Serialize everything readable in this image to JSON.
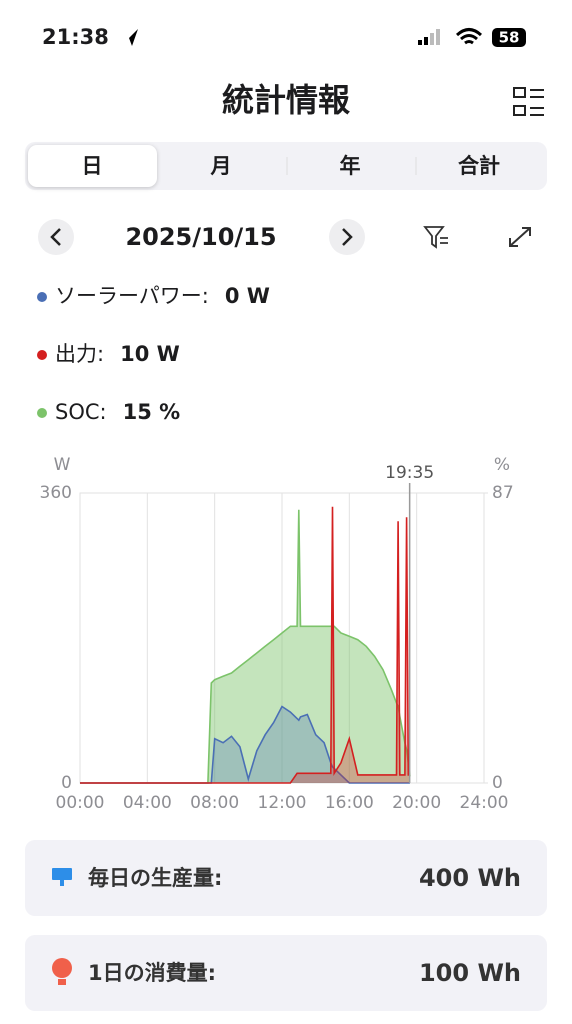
{
  "status_bar": {
    "time": "21:38",
    "battery": "58"
  },
  "header": {
    "title": "統計情報"
  },
  "tabs": [
    "日",
    "月",
    "年",
    "合計"
  ],
  "date": "2025/10/15",
  "readouts": [
    {
      "label": "ソーラーパワー:",
      "value": "0 W"
    },
    {
      "label": "出力:",
      "value": "10 W"
    },
    {
      "label": "SOC:",
      "value": "15 %"
    }
  ],
  "chart_data": {
    "type": "area",
    "ylabel": "W",
    "y2label": "%",
    "x": [
      0,
      6,
      7,
      7.6,
      7.8,
      8,
      8.5,
      9,
      9.5,
      10,
      10.5,
      11,
      11.5,
      12,
      12.5,
      12.9,
      13,
      13.1,
      13.5,
      14,
      14.5,
      14.9,
      15,
      15.1,
      15.5,
      16,
      16.5,
      17,
      17.5,
      18,
      18.5,
      18.8,
      18.9,
      19,
      19.3,
      19.4,
      19.5,
      19.6
    ],
    "series": [
      {
        "name": "ソーラーパワー",
        "color": "#4a6fb5",
        "values": [
          0,
          0,
          0,
          0,
          0,
          55,
          50,
          58,
          45,
          5,
          40,
          60,
          75,
          95,
          88,
          80,
          78,
          82,
          85,
          60,
          50,
          25,
          20,
          18,
          10,
          0,
          0,
          0,
          0,
          0,
          0,
          0,
          0,
          0,
          0,
          0,
          0,
          0
        ]
      },
      {
        "name": "出力",
        "color": "#d42020",
        "values": [
          0,
          0,
          0,
          0,
          0,
          0,
          0,
          0,
          0,
          0,
          0,
          0,
          0,
          0,
          0,
          12,
          12,
          12,
          12,
          12,
          12,
          12,
          343,
          12,
          25,
          55,
          10,
          10,
          10,
          10,
          10,
          10,
          325,
          10,
          10,
          330,
          10,
          10
        ]
      },
      {
        "name": "SOC",
        "color": "#7cc36a",
        "axis": "y2",
        "values": [
          0,
          0,
          0,
          0,
          30,
          31,
          32,
          33,
          35,
          37,
          39,
          41,
          43,
          45,
          47,
          47,
          82,
          47,
          47,
          47,
          47,
          47,
          47,
          47,
          45,
          44,
          43,
          41,
          38,
          34,
          28,
          24,
          23,
          20,
          12,
          10,
          6,
          2
        ]
      }
    ],
    "xlim": [
      0,
      24
    ],
    "xticks": [
      {
        "value": 0,
        "label": "00:00"
      },
      {
        "value": 4,
        "label": "04:00"
      },
      {
        "value": 8,
        "label": "08:00"
      },
      {
        "value": 12,
        "label": "12:00"
      },
      {
        "value": 16,
        "label": "16:00"
      },
      {
        "value": 20,
        "label": "20:00"
      },
      {
        "value": 24,
        "label": "24:00"
      }
    ],
    "ylim": [
      0,
      360
    ],
    "yticks": [
      0,
      360
    ],
    "y2lim": [
      0,
      87
    ],
    "y2ticks": [
      0,
      87
    ],
    "cursor": {
      "value": 19.583,
      "label": "19:35"
    },
    "grid": true
  },
  "summary": [
    {
      "label": "毎日の生産量:",
      "value": "400 Wh"
    },
    {
      "label": "1日の消費量:",
      "value": "100 Wh"
    }
  ]
}
